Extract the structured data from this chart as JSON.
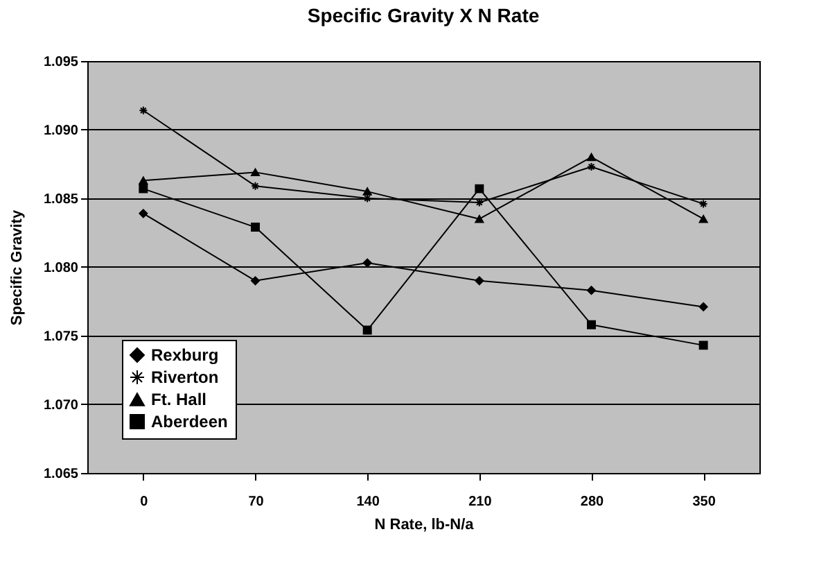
{
  "chart_data": {
    "type": "line",
    "title": "Specific Gravity X N Rate",
    "xlabel": "N Rate, lb-N/a",
    "ylabel": "Specific Gravity",
    "categories": [
      "0",
      "70",
      "140",
      "210",
      "280",
      "350"
    ],
    "series": [
      {
        "name": "Rexburg",
        "color": "#000000",
        "marker": "diamond",
        "values": [
          1.0839,
          1.079,
          1.0803,
          1.079,
          1.0783,
          1.0771
        ]
      },
      {
        "name": "Riverton",
        "color": "#000000",
        "marker": "cross",
        "values": [
          1.0914,
          1.0859,
          1.085,
          1.0847,
          1.0873,
          1.0846
        ]
      },
      {
        "name": "Ft. Hall",
        "color": "#000000",
        "marker": "triangle",
        "values": [
          1.0863,
          1.0869,
          1.0855,
          1.0835,
          1.088,
          1.0835
        ]
      },
      {
        "name": "Aberdeen",
        "color": "#000000",
        "marker": "square",
        "values": [
          1.0857,
          1.0829,
          1.0754,
          1.0857,
          1.0758,
          1.0743
        ]
      }
    ],
    "ylim": [
      1.065,
      1.095
    ],
    "yticks": [
      1.065,
      {
        "value": 1.07,
        "label": "1.070"
      },
      1.075,
      {
        "value": 1.08,
        "label": "1.080"
      },
      1.085,
      {
        "value": 1.09,
        "label": "1.090"
      },
      1.095
    ],
    "grid": "y",
    "legend": "bottom left",
    "line_style": "solid"
  }
}
